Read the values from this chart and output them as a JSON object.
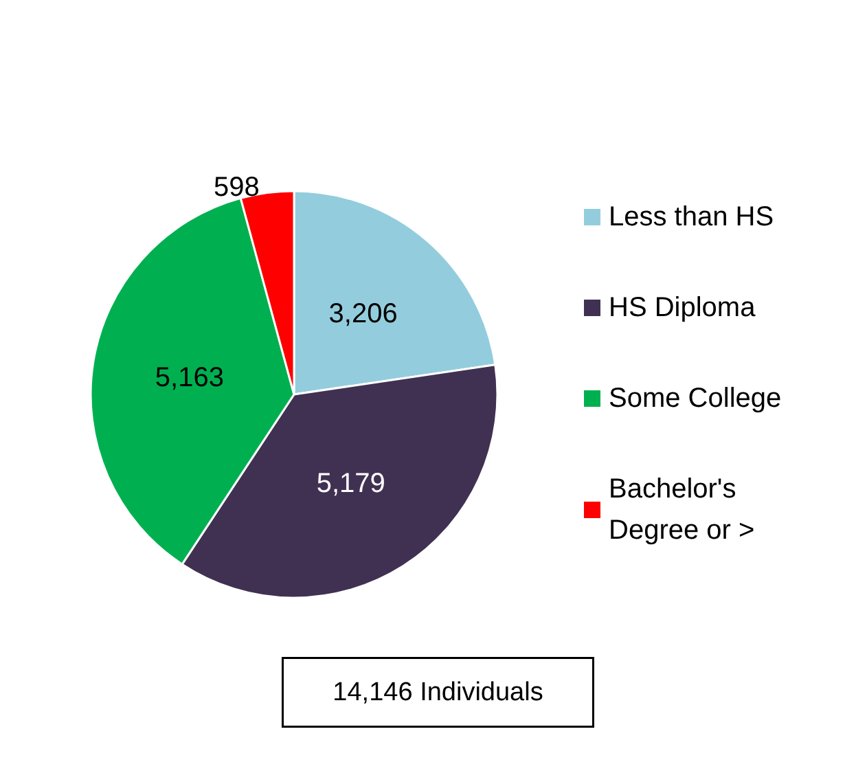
{
  "chart_data": {
    "type": "pie",
    "categories": [
      "Less than HS",
      "HS Diploma",
      "Some College",
      "Bachelor's Degree or >"
    ],
    "values": [
      3206,
      5179,
      5163,
      598
    ],
    "colors": [
      "#93cddd",
      "#403152",
      "#00b050",
      "#ff0000"
    ],
    "value_labels": [
      "3,206",
      "5,179",
      "5,163",
      "598"
    ],
    "legend": "right",
    "annotations": [
      "14,146 Individuals"
    ]
  }
}
